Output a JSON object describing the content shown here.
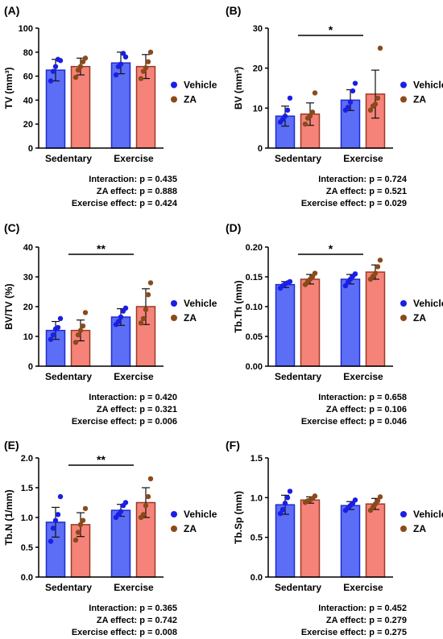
{
  "colors": {
    "vehicle_bar": "#5b6ef5",
    "vehicle_edge": "#1f2bd1",
    "vehicle_dot": "#1a1ee6",
    "za_bar": "#f5837a",
    "za_edge": "#9a3b22",
    "za_dot": "#8b4a1b"
  },
  "chart_data": [
    {
      "panel_label": "(A)",
      "type": "bar",
      "ylabel": "TV (mm³)",
      "categories": [
        "Sedentary",
        "Exercise"
      ],
      "ylim": [
        0,
        100
      ],
      "yticks": [
        "0",
        "20",
        "40",
        "60",
        "80",
        "100"
      ],
      "series": [
        {
          "name": "Vehicle",
          "values": [
            65,
            71
          ],
          "sd": [
            9,
            9
          ],
          "points": [
            [
              56,
              64,
              68,
              74,
              73
            ],
            [
              61,
              68,
              70,
              79,
              76
            ]
          ]
        },
        {
          "name": "ZA",
          "values": [
            68,
            68
          ],
          "sd": [
            7,
            10
          ],
          "points": [
            [
              59,
              65,
              68,
              72,
              75
            ],
            [
              58,
              64,
              67,
              72,
              80
            ]
          ]
        }
      ],
      "significance": [],
      "stats": [
        "Interaction: p = 0.435",
        "ZA effect: p = 0.888",
        "Exercise effect: p = 0.424"
      ]
    },
    {
      "panel_label": "(B)",
      "type": "bar",
      "ylabel": "BV (mm³)",
      "categories": [
        "Sedentary",
        "Exercise"
      ],
      "ylim": [
        0,
        30
      ],
      "yticks": [
        "0",
        "10",
        "20",
        "30"
      ],
      "series": [
        {
          "name": "Vehicle",
          "values": [
            8,
            12
          ],
          "sd": [
            2.5,
            2.6
          ],
          "points": [
            [
              6.5,
              7.2,
              8,
              9.5,
              12.5
            ],
            [
              9.5,
              10.2,
              11.5,
              14.3,
              16.2
            ]
          ]
        },
        {
          "name": "ZA",
          "values": [
            8.5,
            13.5
          ],
          "sd": [
            2.8,
            6
          ],
          "points": [
            [
              6,
              7.5,
              8,
              9,
              13.8
            ],
            [
              9.5,
              10.5,
              11,
              12.5,
              25
            ]
          ]
        }
      ],
      "significance": [
        {
          "label": "*",
          "from": "Sedentary",
          "to": "Exercise"
        }
      ],
      "stats": [
        "Interaction: p = 0.724",
        "ZA effect: p = 0.521",
        "Exercise effect: p = 0.029"
      ]
    },
    {
      "panel_label": "(C)",
      "type": "bar",
      "ylabel": "BV/TV (%)",
      "categories": [
        "Sedentary",
        "Exercise"
      ],
      "ylim": [
        0,
        40
      ],
      "yticks": [
        "0",
        "10",
        "20",
        "30",
        "40"
      ],
      "series": [
        {
          "name": "Vehicle",
          "values": [
            12,
            16.5
          ],
          "sd": [
            3,
            2.8
          ],
          "points": [
            [
              9,
              10.5,
              12.5,
              13,
              16
            ],
            [
              14,
              15,
              16.5,
              18.5,
              19.5
            ]
          ]
        },
        {
          "name": "ZA",
          "values": [
            12,
            20
          ],
          "sd": [
            3.5,
            6
          ],
          "points": [
            [
              8,
              10.5,
              12,
              13.5,
              18
            ],
            [
              14.5,
              16,
              19,
              24,
              28
            ]
          ]
        }
      ],
      "significance": [
        {
          "label": "**",
          "from": "Sedentary",
          "to": "Exercise"
        }
      ],
      "stats": [
        "Interaction: p = 0.420",
        "ZA effect: p = 0.321",
        "Exercise effect: p = 0.006"
      ]
    },
    {
      "panel_label": "(D)",
      "type": "bar",
      "ylabel": "Tb.Th (mm)",
      "categories": [
        "Sedentary",
        "Exercise"
      ],
      "ylim": [
        0,
        0.2
      ],
      "yticks": [
        "0.00",
        "0.05",
        "0.10",
        "0.15",
        "0.20"
      ],
      "series": [
        {
          "name": "Vehicle",
          "values": [
            0.137,
            0.146
          ],
          "sd": [
            0.005,
            0.008
          ],
          "points": [
            [
              0.131,
              0.135,
              0.138,
              0.14,
              0.142
            ],
            [
              0.135,
              0.141,
              0.146,
              0.151,
              0.155
            ]
          ]
        },
        {
          "name": "ZA",
          "values": [
            0.146,
            0.158
          ],
          "sd": [
            0.008,
            0.012
          ],
          "points": [
            [
              0.137,
              0.142,
              0.146,
              0.15,
              0.156
            ],
            [
              0.146,
              0.151,
              0.156,
              0.167,
              0.178
            ]
          ]
        }
      ],
      "significance": [
        {
          "label": "*",
          "from": "Sedentary",
          "to": "Exercise"
        }
      ],
      "stats": [
        "Interaction: p = 0.658",
        "ZA effect: p = 0.106",
        "Exercise effect: p = 0.046"
      ]
    },
    {
      "panel_label": "(E)",
      "type": "bar",
      "ylabel": "Tb.N (1/mm)",
      "categories": [
        "Sedentary",
        "Exercise"
      ],
      "ylim": [
        0,
        2
      ],
      "yticks": [
        "0.0",
        "0.5",
        "1.0",
        "1.5",
        "2.0"
      ],
      "series": [
        {
          "name": "Vehicle",
          "values": [
            0.92,
            1.12
          ],
          "sd": [
            0.25,
            0.1
          ],
          "points": [
            [
              0.6,
              0.82,
              0.95,
              1.05,
              1.35
            ],
            [
              1.0,
              1.05,
              1.1,
              1.2,
              1.25
            ]
          ]
        },
        {
          "name": "ZA",
          "values": [
            0.88,
            1.25
          ],
          "sd": [
            0.2,
            0.25
          ],
          "points": [
            [
              0.62,
              0.75,
              0.88,
              0.95,
              1.15
            ],
            [
              1.0,
              1.05,
              1.2,
              1.35,
              1.65
            ]
          ]
        }
      ],
      "significance": [
        {
          "label": "**",
          "from": "Sedentary",
          "to": "Exercise"
        }
      ],
      "stats": [
        "Interaction: p = 0.365",
        "ZA effect: p = 0.742",
        "Exercise effect: p = 0.008"
      ]
    },
    {
      "panel_label": "(F)",
      "type": "bar",
      "ylabel": "Tb.Sp (mm)",
      "categories": [
        "Sedentary",
        "Exercise"
      ],
      "ylim": [
        0,
        1.5
      ],
      "yticks": [
        "0.0",
        "0.5",
        "1.0",
        "1.5"
      ],
      "series": [
        {
          "name": "Vehicle",
          "values": [
            0.91,
            0.9
          ],
          "sd": [
            0.12,
            0.05
          ],
          "points": [
            [
              0.8,
              0.85,
              0.93,
              1.0,
              1.08
            ],
            [
              0.84,
              0.87,
              0.9,
              0.93,
              0.97
            ]
          ]
        },
        {
          "name": "ZA",
          "values": [
            0.97,
            0.92
          ],
          "sd": [
            0.04,
            0.07
          ],
          "points": [
            [
              0.94,
              0.96,
              0.97,
              0.99,
              1.02
            ],
            [
              0.84,
              0.88,
              0.92,
              0.96,
              1.01
            ]
          ]
        }
      ],
      "significance": [],
      "stats": [
        "Interaction: p = 0.452",
        "ZA effect: p = 0.279",
        "Exercise effect: p = 0.275"
      ]
    }
  ]
}
